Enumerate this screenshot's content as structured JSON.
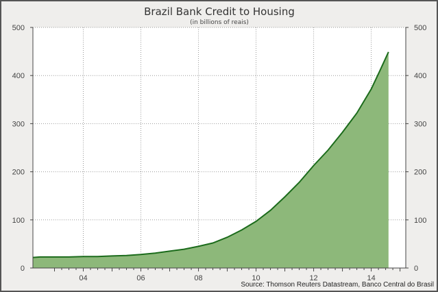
{
  "chart_data": {
    "type": "area",
    "title": "Brazil Bank Credit to Housing",
    "subtitle": "(in billions of reais)",
    "source": "Source: Thomson Reuters Datastream, Banco Central do Brasil",
    "xlim": [
      2002.25,
      2015.2
    ],
    "ylim": [
      0,
      500
    ],
    "x_ticks": [
      {
        "value": 2004,
        "label": "04"
      },
      {
        "value": 2006,
        "label": "06"
      },
      {
        "value": 2008,
        "label": "08"
      },
      {
        "value": 2010,
        "label": "10"
      },
      {
        "value": 2012,
        "label": "12"
      },
      {
        "value": 2014,
        "label": "14"
      }
    ],
    "y_ticks": [
      0,
      100,
      200,
      300,
      400,
      500
    ],
    "grid": true,
    "colors": {
      "fill": "#8db87a",
      "line": "#1b6b1b"
    },
    "x": [
      2002.25,
      2002.5,
      2003,
      2003.5,
      2004,
      2004.5,
      2005,
      2005.5,
      2006,
      2006.5,
      2007,
      2007.5,
      2008,
      2008.5,
      2009,
      2009.5,
      2010,
      2010.5,
      2011,
      2011.5,
      2012,
      2012.5,
      2013,
      2013.5,
      2014,
      2014.3,
      2014.6
    ],
    "values": [
      22,
      23,
      23,
      23,
      24,
      24,
      25,
      26,
      28,
      31,
      35,
      39,
      45,
      52,
      64,
      79,
      97,
      120,
      148,
      178,
      213,
      245,
      282,
      322,
      372,
      410,
      449
    ]
  }
}
